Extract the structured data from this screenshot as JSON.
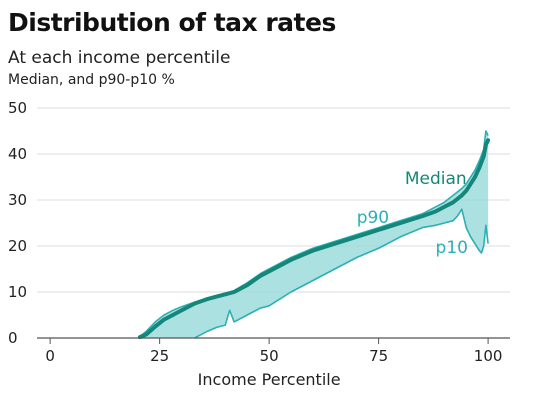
{
  "header": {
    "title": "Distribution of tax rates",
    "subtitle": "At each income percentile",
    "unit_note": "Median, and p90-p10 %"
  },
  "chart_data": {
    "type": "area",
    "title": "Distribution of tax rates",
    "subtitle": "At each income percentile",
    "xlabel": "Income Percentile",
    "ylabel": "",
    "xlim": [
      -3,
      105
    ],
    "ylim": [
      0,
      50
    ],
    "x_ticks": [
      0,
      25,
      50,
      75,
      100
    ],
    "y_ticks": [
      0,
      10,
      20,
      30,
      40,
      50
    ],
    "grid": "horizontal",
    "colors": {
      "median": "#15877a",
      "band_fill": "#9edcdc",
      "band_line": "#2bb0b4",
      "grid": "#dddddd",
      "axis": "#555555"
    },
    "annotations": [
      {
        "text": "Median",
        "x": 81,
        "y": 33.5,
        "color": "#15877a"
      },
      {
        "text": "p90",
        "x": 70,
        "y": 25,
        "color": "#2bb0b4"
      },
      {
        "text": "p10",
        "x": 88,
        "y": 18.5,
        "color": "#2bb0b4"
      }
    ],
    "series": [
      {
        "name": "Median",
        "x": [
          20.5,
          22,
          24,
          26,
          28,
          30,
          33,
          36,
          38,
          40,
          42,
          45,
          48,
          50,
          55,
          60,
          65,
          70,
          75,
          80,
          85,
          88,
          90,
          92,
          94,
          95,
          96,
          97,
          98,
          99,
          99.5,
          100
        ],
        "values": [
          0.2,
          0.8,
          2.5,
          4.0,
          5.0,
          6.0,
          7.5,
          8.5,
          9.0,
          9.5,
          10.0,
          11.5,
          13.5,
          14.5,
          17.0,
          19.0,
          20.5,
          22.0,
          23.5,
          25.0,
          26.5,
          27.5,
          28.5,
          29.5,
          31.0,
          32.0,
          33.5,
          35.0,
          37.0,
          39.5,
          42.0,
          43.0
        ]
      },
      {
        "name": "p90",
        "x": [
          20.5,
          22,
          24,
          26,
          28,
          30,
          33,
          36,
          38,
          40,
          42,
          45,
          48,
          50,
          55,
          60,
          65,
          70,
          75,
          80,
          85,
          88,
          90,
          92,
          94,
          95,
          96,
          97,
          98,
          99,
          99.5,
          100
        ],
        "values": [
          0.3,
          1.5,
          3.5,
          5.0,
          6.0,
          6.8,
          7.8,
          8.6,
          9.2,
          9.7,
          10.3,
          12.0,
          14.0,
          15.0,
          17.5,
          19.5,
          21.0,
          22.5,
          24.0,
          25.5,
          27.0,
          28.5,
          29.5,
          31.0,
          32.5,
          33.5,
          35.0,
          36.5,
          38.5,
          41.0,
          45.0,
          44.0
        ]
      },
      {
        "name": "p10",
        "x": [
          33,
          34,
          36,
          38,
          40,
          40.5,
          41,
          42,
          45,
          48,
          50,
          55,
          60,
          65,
          70,
          75,
          80,
          85,
          88,
          90,
          92,
          93,
          94,
          95,
          96,
          97,
          98,
          98.5,
          99,
          99.5,
          100
        ],
        "values": [
          0,
          0.5,
          1.5,
          2.3,
          2.8,
          4.5,
          6.0,
          3.5,
          5.0,
          6.5,
          7.0,
          10.0,
          12.5,
          15.0,
          17.5,
          19.5,
          22.0,
          24.0,
          24.5,
          25.0,
          25.5,
          26.5,
          28.0,
          24.0,
          22.0,
          20.5,
          19.0,
          18.5,
          20.0,
          24.5,
          20.5
        ]
      }
    ]
  }
}
